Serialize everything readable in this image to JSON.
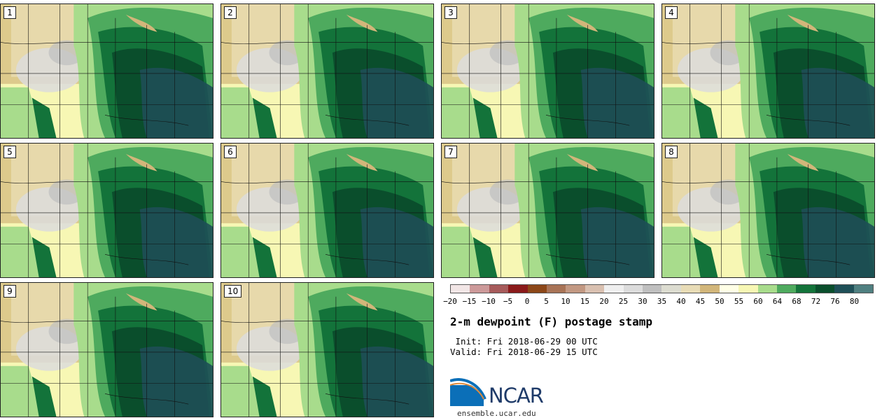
{
  "panels": [
    {
      "label": "1"
    },
    {
      "label": "2"
    },
    {
      "label": "3"
    },
    {
      "label": "4"
    },
    {
      "label": "5"
    },
    {
      "label": "6"
    },
    {
      "label": "7"
    },
    {
      "label": "8"
    },
    {
      "label": "9"
    },
    {
      "label": "10"
    }
  ],
  "colorbar": {
    "colors": [
      "#f2e6e6",
      "#cc9999",
      "#a65a5a",
      "#8a1a1a",
      "#8c4718",
      "#a87356",
      "#c29882",
      "#d9c0b0",
      "#efefef",
      "#dcdcdc",
      "#bfbfbf",
      "#dcdcd0",
      "#e8dcb6",
      "#d2b67a",
      "#ffffe6",
      "#f7f7b4",
      "#a8dc8c",
      "#4eaa5e",
      "#13733a",
      "#0a4e2c",
      "#1e4f57",
      "#4f7f80"
    ],
    "ticks": [
      "−20",
      "−15",
      "−10",
      "−5",
      "0",
      "5",
      "10",
      "15",
      "20",
      "25",
      "30",
      "35",
      "40",
      "45",
      "50",
      "55",
      "60",
      "64",
      "68",
      "72",
      "76",
      "80"
    ]
  },
  "title": "2-m dewpoint (F) postage stamp",
  "init": " Init: Fri 2018-06-29 00 UTC",
  "valid": "Valid: Fri 2018-06-29 15 UTC",
  "logo": {
    "text": "NCAR",
    "site": "ensemble.ucar.edu",
    "blue": "#0b6fb8",
    "navy": "#1f3b69"
  }
}
